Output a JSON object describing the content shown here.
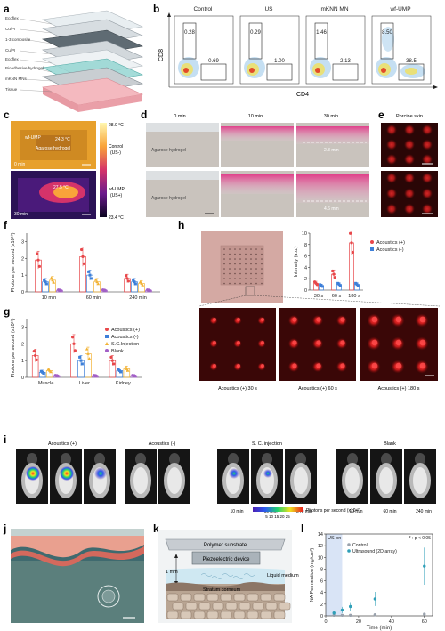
{
  "panel_letters": [
    "a",
    "b",
    "c",
    "d",
    "e",
    "f",
    "g",
    "h",
    "i",
    "j",
    "k",
    "l"
  ],
  "a": {
    "layers": [
      "Ecoflex",
      "Cu/PI",
      "1-3 composite",
      "Cu/PI",
      "Ecoflex",
      "Bioadhesive hydrogel",
      "mKNN MNs",
      "Tissue"
    ]
  },
  "b": {
    "titles": [
      "Control",
      "US",
      "mKNN MN",
      "wf-UMP"
    ],
    "ylabel": "CD8",
    "xlabel": "CD4",
    "cd8_gate": [
      "0.28",
      "0.29",
      "1.46",
      "8.50"
    ],
    "cd4_gate": [
      "0.69",
      "1.00",
      "2.13",
      "38.5"
    ]
  },
  "c": {
    "scale_max": "28.0 °C",
    "scale_min": "23.4 °C",
    "top_label_device": "wf-UMP",
    "top_temp": "24.3 °C",
    "top_label_gel": "Agarose hydrogel",
    "top_time": "0 min",
    "bottom_temp": "27.5 °C",
    "bottom_time": "30 min",
    "label_top_a": "Control",
    "label_top_b": "(US-)",
    "label_bottom_a": "wf-UMP",
    "label_bottom_b": "(US+)"
  },
  "d": {
    "times": [
      "0 min",
      "10 min",
      "30 min"
    ],
    "gel_label": "Agarose hydrogel",
    "depth_top": "2.3 mm",
    "depth_bottom": "4.6 mm"
  },
  "e": {
    "title": "Porcine skin"
  },
  "f": {
    "ylabel": "Photons per second (x10¹⁰)",
    "ymax_label": "3",
    "ticks": [
      "0",
      "1",
      "2",
      "3"
    ],
    "groups": [
      "10 min",
      "60 min",
      "240 min"
    ]
  },
  "g": {
    "ylabel": "Photons per second (x10¹⁰)",
    "ticks": [
      "0",
      "1",
      "2",
      "3"
    ],
    "groups": [
      "Muscle",
      "Liver",
      "Kidney"
    ],
    "legend": [
      "Acoustics (+)",
      "Acoustics (-)",
      "S.C.Injection",
      "Blank"
    ]
  },
  "h": {
    "ylabel": "Intensity (a.u.)",
    "ticks": [
      "0",
      "2",
      "4",
      "6",
      "8",
      "10"
    ],
    "groups": [
      "30 s",
      "60 s",
      "180 s"
    ],
    "legend": [
      "Acoustics (+)",
      "Acoustics (-)"
    ],
    "captions": [
      "Acoustics (+) 30 s",
      "Acoustics (+) 60 s",
      "Acoustics (+) 180 s"
    ]
  },
  "i": {
    "header_plus": "Acoustics (+)",
    "header_minus": "Acoustics (-)",
    "header_sc": "S. C. injection",
    "header_blank": "Blank",
    "times": [
      "10 min",
      "60 min",
      "240 min",
      "10 min",
      "60 min",
      "240 min"
    ],
    "scale_ticks": "5  10  15  20  25",
    "scale_label": "Photons per second (x10¹⁰)"
  },
  "k": {
    "substrate": "Polymer substrate",
    "device": "Piezoelectric device",
    "depth": "1 mm",
    "liquid": "Liquid medium",
    "sc": "Stratum corneum"
  },
  "l": {
    "ylabel": "NA Permeation (mg/cm²)",
    "xlabel": "Time (min)",
    "us_on": "US on",
    "sig": "* : p < 0.05",
    "legend": [
      "Control",
      "Ultrasound (2D array)"
    ],
    "yticks": [
      "0",
      "2",
      "4",
      "6",
      "8",
      "10",
      "12",
      "14"
    ],
    "xticks": [
      "0",
      "20",
      "40",
      "60"
    ]
  },
  "colors": {
    "acoustics_plus": "#e8474a",
    "acoustics_minus": "#3d7fd9",
    "sc_injection": "#f2b233",
    "blank": "#a25ec7",
    "hydrogel_pink": "#e0408a",
    "control_grey": "#9aa2ad",
    "ultrasound_teal": "#2f9fb8"
  },
  "chart_data": [
    {
      "type": "bar",
      "panel": "f",
      "title": "",
      "ylabel": "Photons per second (x10¹⁰)",
      "categories": [
        "10 min",
        "60 min",
        "240 min"
      ],
      "ylim": [
        0,
        3.5
      ],
      "series": [
        {
          "values": [
            1.9,
            2.1,
            0.8
          ]
        },
        {
          "values": [
            0.6,
            1.0,
            0.6
          ]
        },
        {
          "values": [
            0.7,
            0.6,
            0.5
          ]
        },
        {
          "values": [
            0.1,
            0.1,
            0.1
          ]
        }
      ]
    },
    {
      "type": "bar",
      "panel": "g",
      "title": "",
      "ylabel": "Photons per second (x10¹⁰)",
      "categories": [
        "Muscle",
        "Liver",
        "Kidney"
      ],
      "ylim": [
        0,
        3.5
      ],
      "series": [
        {
          "name": "Acoustics (+)",
          "values": [
            1.3,
            2.0,
            1.0
          ]
        },
        {
          "name": "Acoustics (-)",
          "values": [
            0.3,
            1.0,
            0.4
          ]
        },
        {
          "name": "S.C.Injection",
          "values": [
            0.4,
            1.4,
            0.5
          ]
        },
        {
          "name": "Blank",
          "values": [
            0.1,
            0.1,
            0.1
          ]
        }
      ]
    },
    {
      "type": "bar",
      "panel": "h",
      "title": "",
      "ylabel": "Intensity (a.u.)",
      "categories": [
        "30 s",
        "60 s",
        "180 s"
      ],
      "ylim": [
        0,
        10
      ],
      "series": [
        {
          "name": "Acoustics (+)",
          "values": [
            1.2,
            2.8,
            8.3
          ]
        },
        {
          "name": "Acoustics (-)",
          "values": [
            0.8,
            1.0,
            1.0
          ]
        }
      ]
    },
    {
      "type": "scatter",
      "panel": "l",
      "title": "",
      "xlabel": "Time (min)",
      "ylabel": "NA Permeation (mg/cm²)",
      "xlim": [
        0,
        65
      ],
      "ylim": [
        0,
        14
      ],
      "series": [
        {
          "name": "Control",
          "x": [
            5,
            10,
            15,
            30,
            60
          ],
          "y": [
            0.1,
            0.1,
            0.1,
            0.2,
            0.3
          ]
        },
        {
          "name": "Ultrasound (2D array)",
          "x": [
            5,
            10,
            15,
            30,
            60
          ],
          "y": [
            0.5,
            1.0,
            1.6,
            2.9,
            8.5
          ]
        }
      ]
    }
  ]
}
